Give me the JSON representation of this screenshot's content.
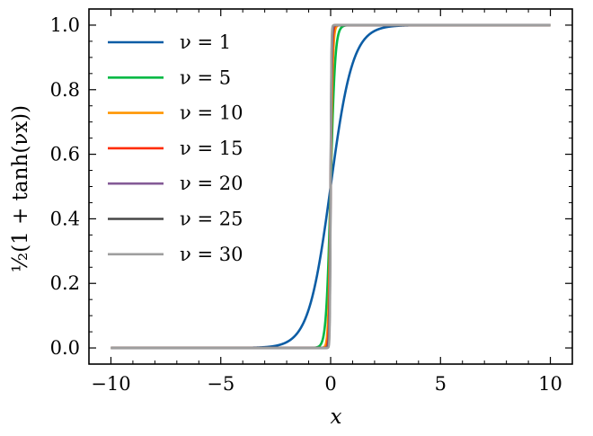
{
  "chart_data": {
    "type": "line",
    "title": "",
    "xlabel": "x",
    "ylabel": "½(1 + tanh(νx))",
    "xlim": [
      -11,
      11
    ],
    "ylim": [
      -0.05,
      1.05
    ],
    "xticks": [
      -10,
      -5,
      0,
      5,
      10
    ],
    "xtick_labels": [
      "−10",
      "−5",
      "0",
      "5",
      "10"
    ],
    "yticks": [
      0.0,
      0.2,
      0.4,
      0.6,
      0.8,
      1.0
    ],
    "ytick_labels": [
      "0.0",
      "0.2",
      "0.4",
      "0.6",
      "0.8",
      "1.0"
    ],
    "x_domain": [
      -10,
      10
    ],
    "grid": false,
    "legend_position": "top-left",
    "series": [
      {
        "name": "ν = 1",
        "nu": 1,
        "color": "#0C5DA5"
      },
      {
        "name": "ν = 5",
        "nu": 5,
        "color": "#00B945"
      },
      {
        "name": "ν = 10",
        "nu": 10,
        "color": "#FF9500"
      },
      {
        "name": "ν = 15",
        "nu": 15,
        "color": "#FF2C00"
      },
      {
        "name": "ν = 20",
        "nu": 20,
        "color": "#845B97"
      },
      {
        "name": "ν = 25",
        "nu": 25,
        "color": "#474747"
      },
      {
        "name": "ν = 30",
        "nu": 30,
        "color": "#9E9E9E"
      }
    ]
  }
}
